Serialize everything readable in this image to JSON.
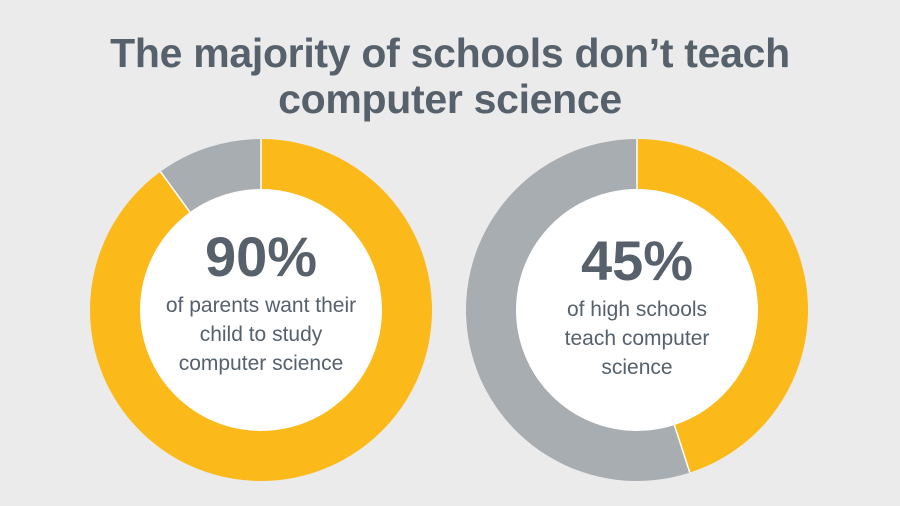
{
  "title": {
    "line1": "The majority of schools don’t teach",
    "line2": "computer science"
  },
  "colors": {
    "background": "#ebebeb",
    "accent": "#fbb91a",
    "remainder": "#a8adb2",
    "text": "#56616b",
    "center": "#ffffff"
  },
  "chart_data": [
    {
      "type": "pie",
      "style": "donut",
      "center_value": "90%",
      "center_caption": "of parents want their child to study computer science",
      "slices": [
        {
          "label": "",
          "value": 90,
          "color": "#fbb91a"
        },
        {
          "label": "",
          "value": 10,
          "color": "#a8adb2"
        }
      ]
    },
    {
      "type": "pie",
      "style": "donut",
      "center_value": "45%",
      "center_caption": "of high schools teach computer science",
      "slices": [
        {
          "label": "",
          "value": 45,
          "color": "#fbb91a"
        },
        {
          "label": "",
          "value": 55,
          "color": "#a8adb2"
        }
      ]
    }
  ]
}
